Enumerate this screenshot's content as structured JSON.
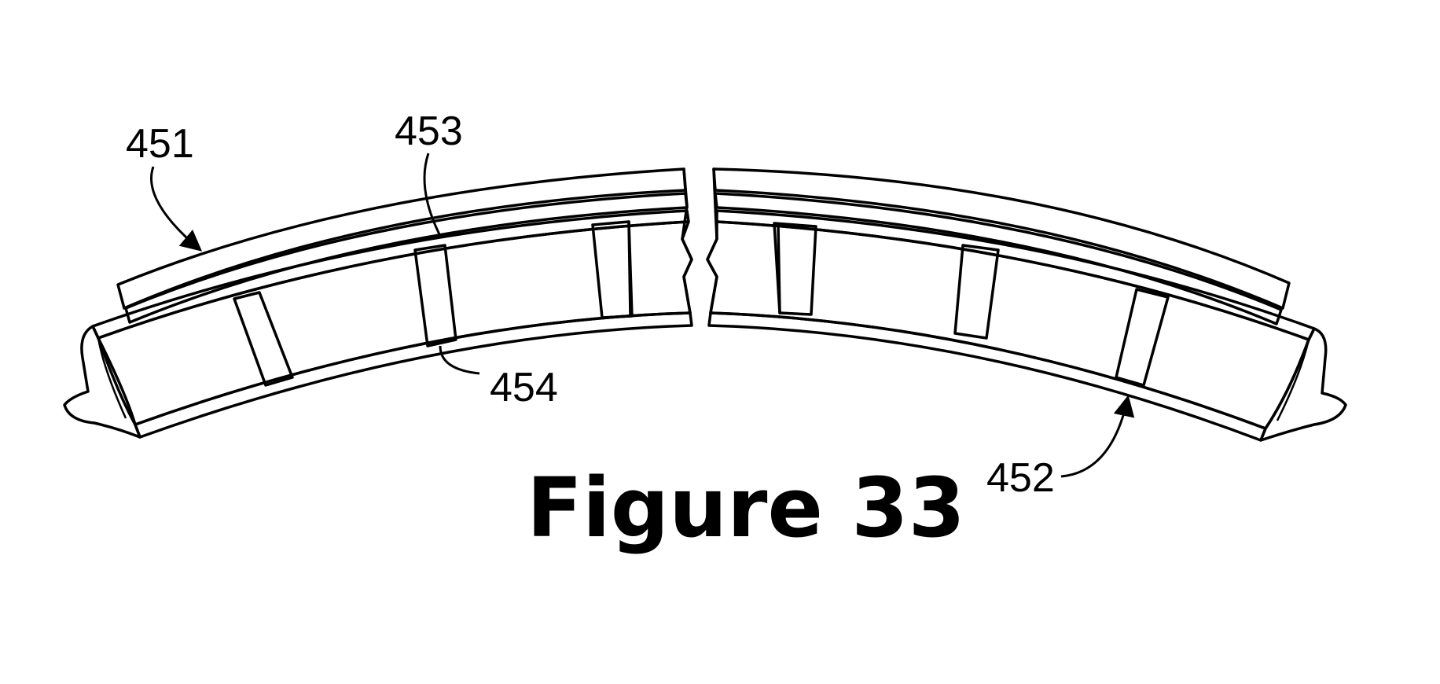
{
  "figure": {
    "caption": "Figure 33",
    "reference_numerals": {
      "outer_layer": "451",
      "inner_shell": "452",
      "adhesive_layer": "453",
      "gap": "454"
    }
  },
  "colors": {
    "line": "#000000",
    "background": "#ffffff"
  }
}
